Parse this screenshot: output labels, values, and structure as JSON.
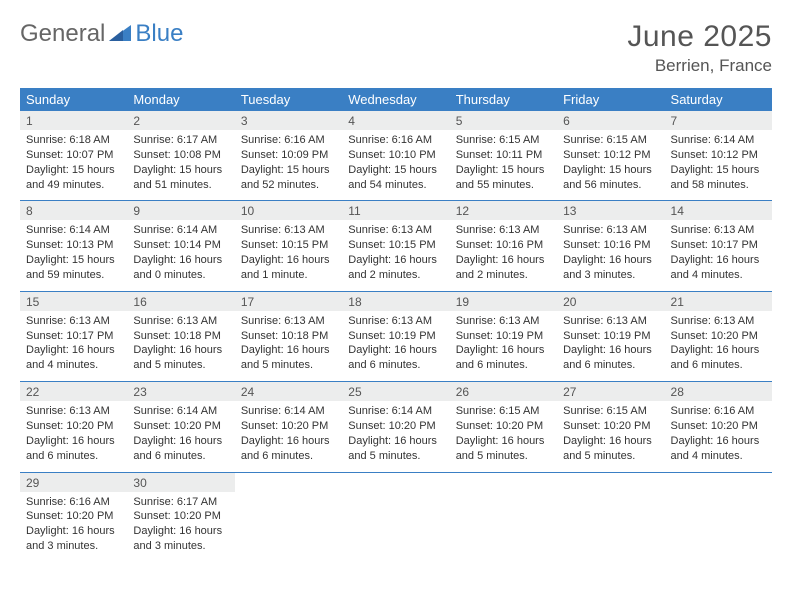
{
  "logo": {
    "text1": "General",
    "text2": "Blue"
  },
  "title": "June 2025",
  "location": "Berrien, France",
  "headers": [
    "Sunday",
    "Monday",
    "Tuesday",
    "Wednesday",
    "Thursday",
    "Friday",
    "Saturday"
  ],
  "colors": {
    "header_bg": "#3a7fc4",
    "header_text": "#ffffff",
    "daynum_bg": "#eceded",
    "rule": "#3a7fc4"
  },
  "weeks": [
    [
      {
        "n": "1",
        "sr": "6:18 AM",
        "ss": "10:07 PM",
        "dl": "15 hours and 49 minutes."
      },
      {
        "n": "2",
        "sr": "6:17 AM",
        "ss": "10:08 PM",
        "dl": "15 hours and 51 minutes."
      },
      {
        "n": "3",
        "sr": "6:16 AM",
        "ss": "10:09 PM",
        "dl": "15 hours and 52 minutes."
      },
      {
        "n": "4",
        "sr": "6:16 AM",
        "ss": "10:10 PM",
        "dl": "15 hours and 54 minutes."
      },
      {
        "n": "5",
        "sr": "6:15 AM",
        "ss": "10:11 PM",
        "dl": "15 hours and 55 minutes."
      },
      {
        "n": "6",
        "sr": "6:15 AM",
        "ss": "10:12 PM",
        "dl": "15 hours and 56 minutes."
      },
      {
        "n": "7",
        "sr": "6:14 AM",
        "ss": "10:12 PM",
        "dl": "15 hours and 58 minutes."
      }
    ],
    [
      {
        "n": "8",
        "sr": "6:14 AM",
        "ss": "10:13 PM",
        "dl": "15 hours and 59 minutes."
      },
      {
        "n": "9",
        "sr": "6:14 AM",
        "ss": "10:14 PM",
        "dl": "16 hours and 0 minutes."
      },
      {
        "n": "10",
        "sr": "6:13 AM",
        "ss": "10:15 PM",
        "dl": "16 hours and 1 minute."
      },
      {
        "n": "11",
        "sr": "6:13 AM",
        "ss": "10:15 PM",
        "dl": "16 hours and 2 minutes."
      },
      {
        "n": "12",
        "sr": "6:13 AM",
        "ss": "10:16 PM",
        "dl": "16 hours and 2 minutes."
      },
      {
        "n": "13",
        "sr": "6:13 AM",
        "ss": "10:16 PM",
        "dl": "16 hours and 3 minutes."
      },
      {
        "n": "14",
        "sr": "6:13 AM",
        "ss": "10:17 PM",
        "dl": "16 hours and 4 minutes."
      }
    ],
    [
      {
        "n": "15",
        "sr": "6:13 AM",
        "ss": "10:17 PM",
        "dl": "16 hours and 4 minutes."
      },
      {
        "n": "16",
        "sr": "6:13 AM",
        "ss": "10:18 PM",
        "dl": "16 hours and 5 minutes."
      },
      {
        "n": "17",
        "sr": "6:13 AM",
        "ss": "10:18 PM",
        "dl": "16 hours and 5 minutes."
      },
      {
        "n": "18",
        "sr": "6:13 AM",
        "ss": "10:19 PM",
        "dl": "16 hours and 6 minutes."
      },
      {
        "n": "19",
        "sr": "6:13 AM",
        "ss": "10:19 PM",
        "dl": "16 hours and 6 minutes."
      },
      {
        "n": "20",
        "sr": "6:13 AM",
        "ss": "10:19 PM",
        "dl": "16 hours and 6 minutes."
      },
      {
        "n": "21",
        "sr": "6:13 AM",
        "ss": "10:20 PM",
        "dl": "16 hours and 6 minutes."
      }
    ],
    [
      {
        "n": "22",
        "sr": "6:13 AM",
        "ss": "10:20 PM",
        "dl": "16 hours and 6 minutes."
      },
      {
        "n": "23",
        "sr": "6:14 AM",
        "ss": "10:20 PM",
        "dl": "16 hours and 6 minutes."
      },
      {
        "n": "24",
        "sr": "6:14 AM",
        "ss": "10:20 PM",
        "dl": "16 hours and 6 minutes."
      },
      {
        "n": "25",
        "sr": "6:14 AM",
        "ss": "10:20 PM",
        "dl": "16 hours and 5 minutes."
      },
      {
        "n": "26",
        "sr": "6:15 AM",
        "ss": "10:20 PM",
        "dl": "16 hours and 5 minutes."
      },
      {
        "n": "27",
        "sr": "6:15 AM",
        "ss": "10:20 PM",
        "dl": "16 hours and 5 minutes."
      },
      {
        "n": "28",
        "sr": "6:16 AM",
        "ss": "10:20 PM",
        "dl": "16 hours and 4 minutes."
      }
    ],
    [
      {
        "n": "29",
        "sr": "6:16 AM",
        "ss": "10:20 PM",
        "dl": "16 hours and 3 minutes."
      },
      {
        "n": "30",
        "sr": "6:17 AM",
        "ss": "10:20 PM",
        "dl": "16 hours and 3 minutes."
      },
      null,
      null,
      null,
      null,
      null
    ]
  ],
  "labels": {
    "sunrise": "Sunrise: ",
    "sunset": "Sunset: ",
    "daylight": "Daylight: "
  }
}
